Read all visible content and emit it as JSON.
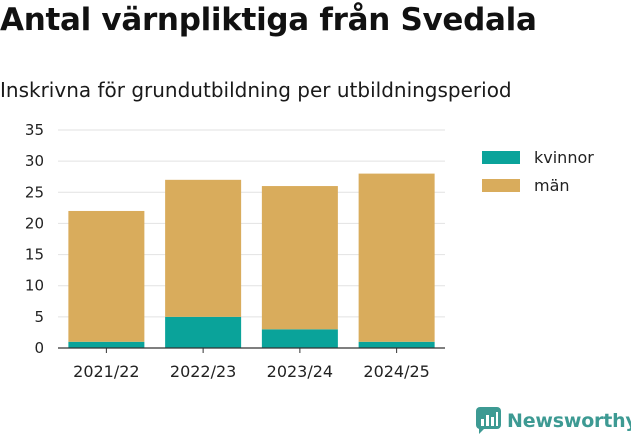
{
  "chart_data": {
    "type": "bar",
    "stacked": true,
    "title": "Antal värnpliktiga från Svedala",
    "subtitle": "Inskrivna för grundutbildning per utbildningsperiod",
    "categories": [
      "2021/22",
      "2022/23",
      "2023/24",
      "2024/25"
    ],
    "series": [
      {
        "name": "kvinnor",
        "color": "#0aa39a",
        "values": [
          1,
          5,
          3,
          1
        ]
      },
      {
        "name": "män",
        "color": "#d9ac5c",
        "values": [
          21,
          22,
          23,
          27
        ]
      }
    ],
    "ylim": [
      0,
      35
    ],
    "yticks": [
      0,
      5,
      10,
      15,
      20,
      25,
      30,
      35
    ],
    "grid": true,
    "legend": "right"
  },
  "brand": {
    "name": "Newsworthy",
    "color": "#3d9a93",
    "icon": "newsworthy-chart-icon"
  }
}
